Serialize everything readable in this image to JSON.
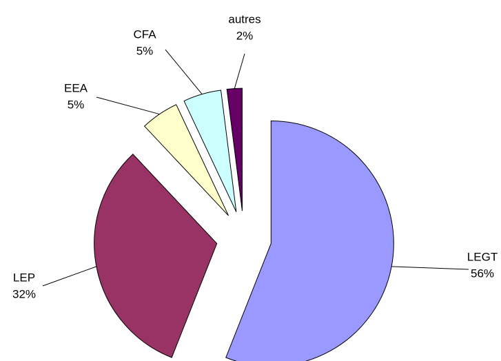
{
  "chart_data": {
    "type": "pie",
    "categories": [
      "LEGT",
      "LEP",
      "EEA",
      "CFA",
      "autres"
    ],
    "values": [
      56,
      32,
      5,
      5,
      2
    ],
    "value_labels": [
      "56%",
      "32%",
      "5%",
      "5%",
      "2%"
    ],
    "colors": [
      "#9999ff",
      "#993366",
      "#ffffcc",
      "#ccffff",
      "#660066"
    ]
  }
}
